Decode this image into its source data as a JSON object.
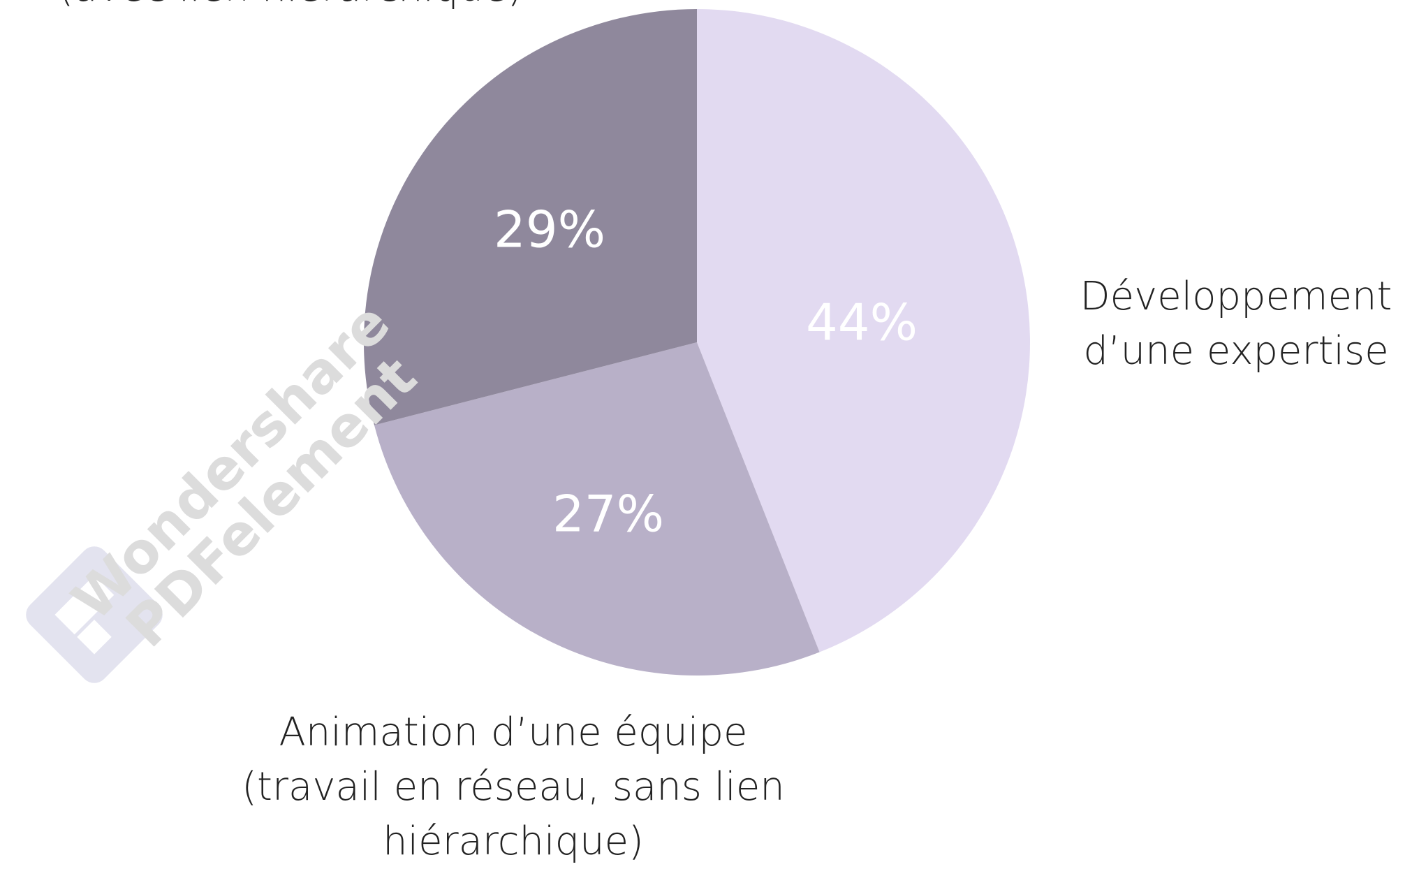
{
  "chart_data": {
    "type": "pie",
    "categories": [
      "Développement\nd’une expertise",
      "Animation d’une équipe\n(travail en réseau, sans lien\nhiérarchique)",
      "(avec lien hiérarchique)"
    ],
    "values": [
      44,
      27,
      29
    ],
    "value_labels": [
      "44%",
      "27%",
      "29%"
    ],
    "colors": [
      "#e2daf1",
      "#b8b0c8",
      "#8f889c"
    ],
    "watermark": "Wondershare\nPDFelement"
  }
}
